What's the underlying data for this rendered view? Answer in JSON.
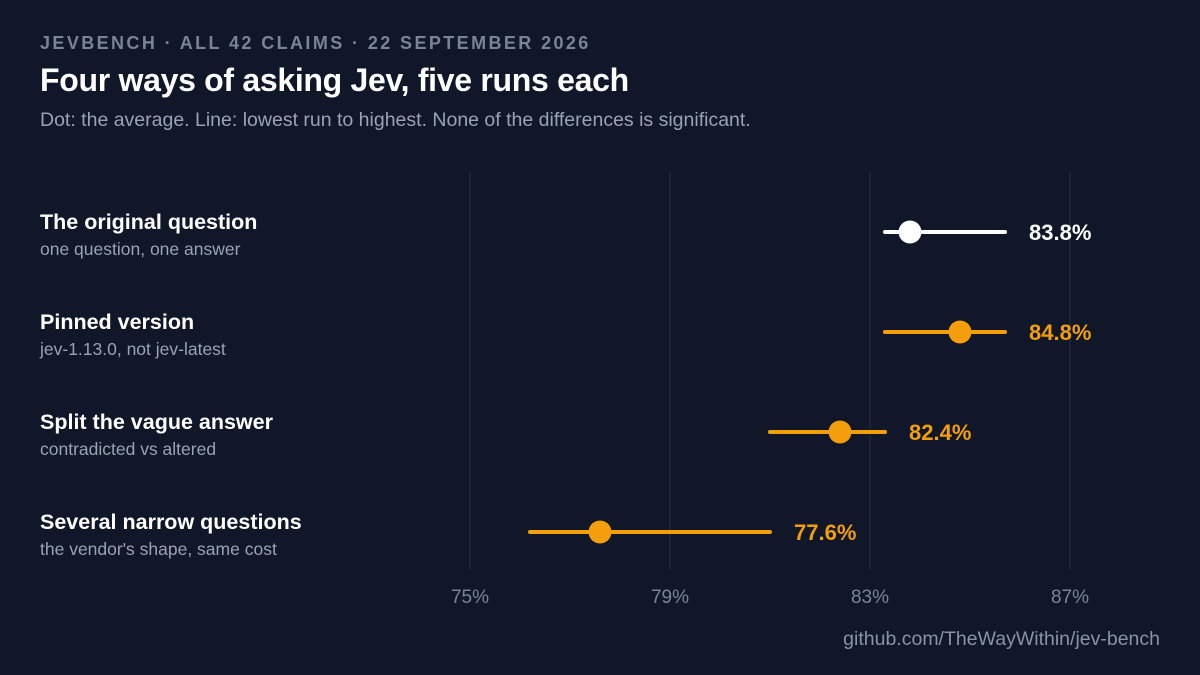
{
  "header": {
    "eyebrow": "JEVBENCH · ALL 42 CLAIMS · 22 SEPTEMBER 2026",
    "title": "Four ways of asking Jev, five runs each",
    "subtitle": "Dot: the average. Line: lowest run to highest. None of the differences is significant."
  },
  "footer": {
    "source": "github.com/TheWayWithin/jev-bench"
  },
  "colors": {
    "background": "#0f1729",
    "baseline": "#ffffff",
    "highlight": "#f59e0b",
    "grid": "#2a3346",
    "tick_text": "#7b8496"
  },
  "chart_data": {
    "type": "dot-range",
    "xlim": [
      70,
      90
    ],
    "x_ticks": [
      75,
      79,
      83,
      87
    ],
    "x_tick_labels": [
      "75%",
      "79%",
      "83%",
      "87%"
    ],
    "grid": true,
    "rows": [
      {
        "title": "The original question",
        "subtitle": "one question, one answer",
        "mean": 83.8,
        "min": 83.3,
        "max": 85.7,
        "value_label": "83.8%",
        "color": "#ffffff"
      },
      {
        "title": "Pinned version",
        "subtitle": "jev-1.13.0, not jev-latest",
        "mean": 84.8,
        "min": 83.3,
        "max": 85.7,
        "value_label": "84.8%",
        "color": "#f59e0b"
      },
      {
        "title": "Split the vague answer",
        "subtitle": "contradicted vs altered",
        "mean": 82.4,
        "min": 81.0,
        "max": 83.3,
        "value_label": "82.4%",
        "color": "#f59e0b"
      },
      {
        "title": "Several narrow questions",
        "subtitle": "the vendor's shape, same cost",
        "mean": 77.6,
        "min": 76.2,
        "max": 81.0,
        "value_label": "77.6%",
        "color": "#f59e0b"
      }
    ]
  }
}
